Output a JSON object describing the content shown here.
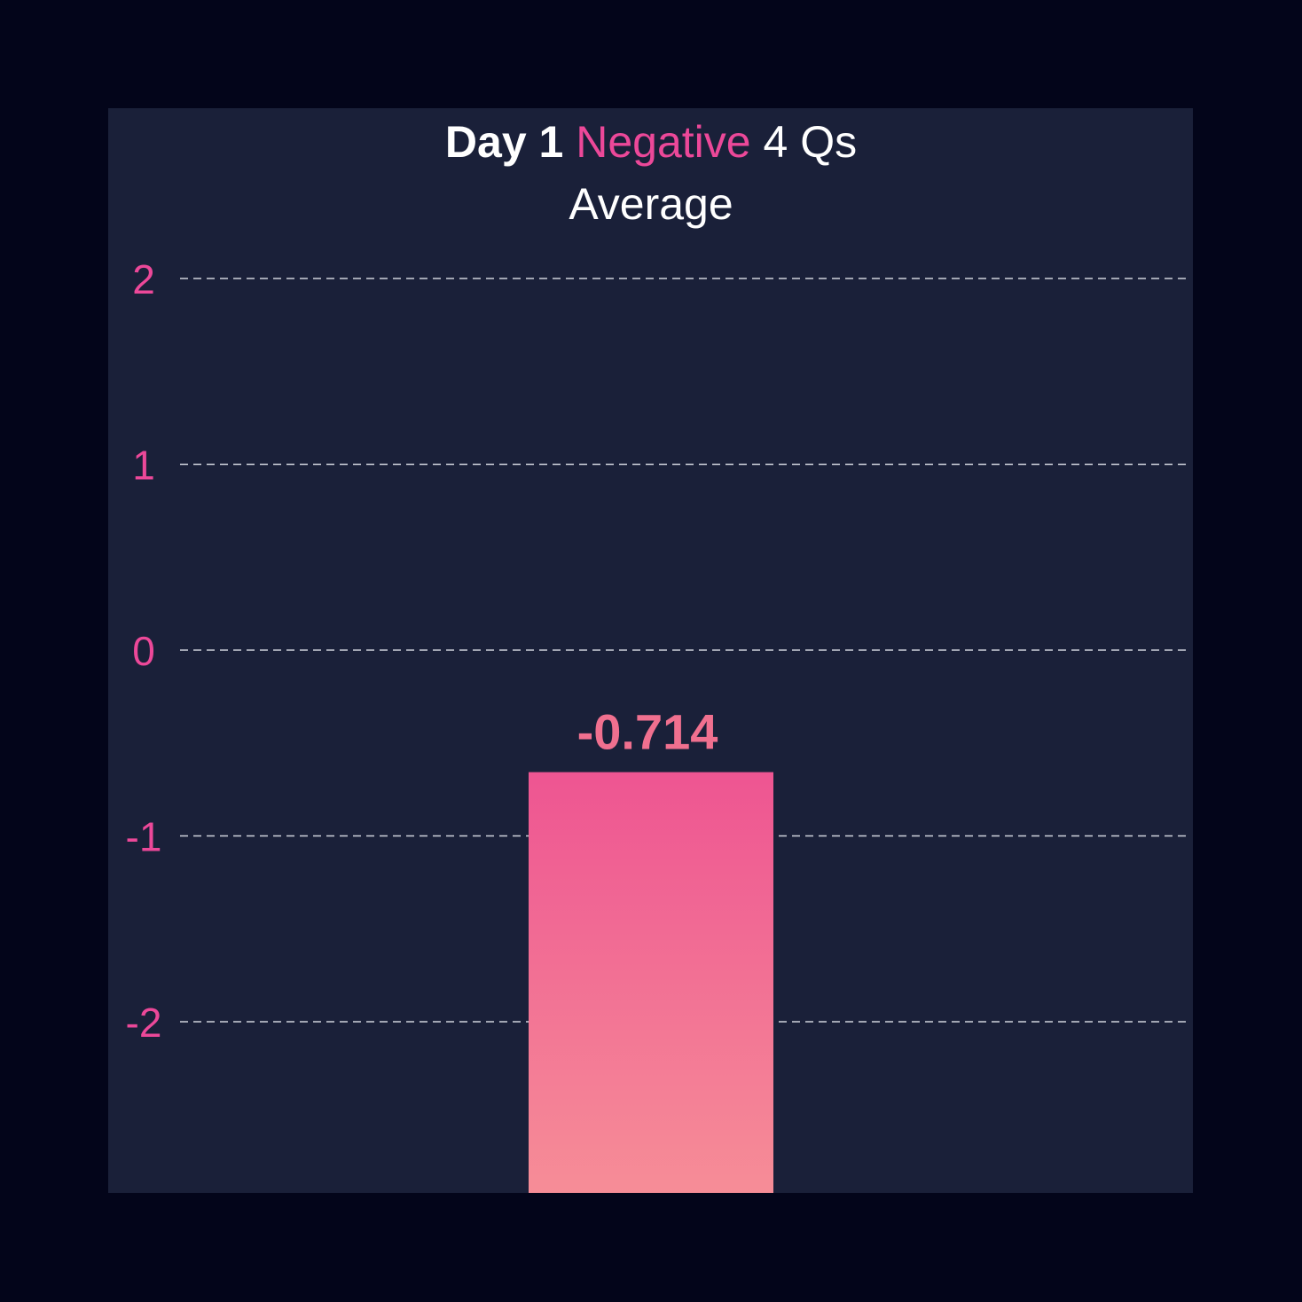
{
  "title": {
    "part1": "Day 1",
    "highlight": "Negative",
    "part2": "4 Qs",
    "subtitle": "Average"
  },
  "colors": {
    "background": "#03051a",
    "panel": "#1a2039",
    "accent": "#ec4899",
    "bar_top": "#ee5592",
    "bar_bottom": "#f68d97",
    "value_label": "#f0708f",
    "gridline": "#cfd3dc"
  },
  "chart_data": {
    "type": "bar",
    "title": "Day 1 Negative 4 Qs Average",
    "categories": [
      ""
    ],
    "values": [
      -0.714
    ],
    "value_labels": [
      "-0.714"
    ],
    "yticks": [
      2,
      1,
      0,
      -1,
      -2
    ],
    "ytick_labels": [
      "2",
      "1",
      "0",
      "-1",
      "-2"
    ],
    "ylim": [
      -2.9,
      2
    ],
    "grid": true,
    "grid_style": "dashed",
    "xlabel": "",
    "ylabel": ""
  }
}
